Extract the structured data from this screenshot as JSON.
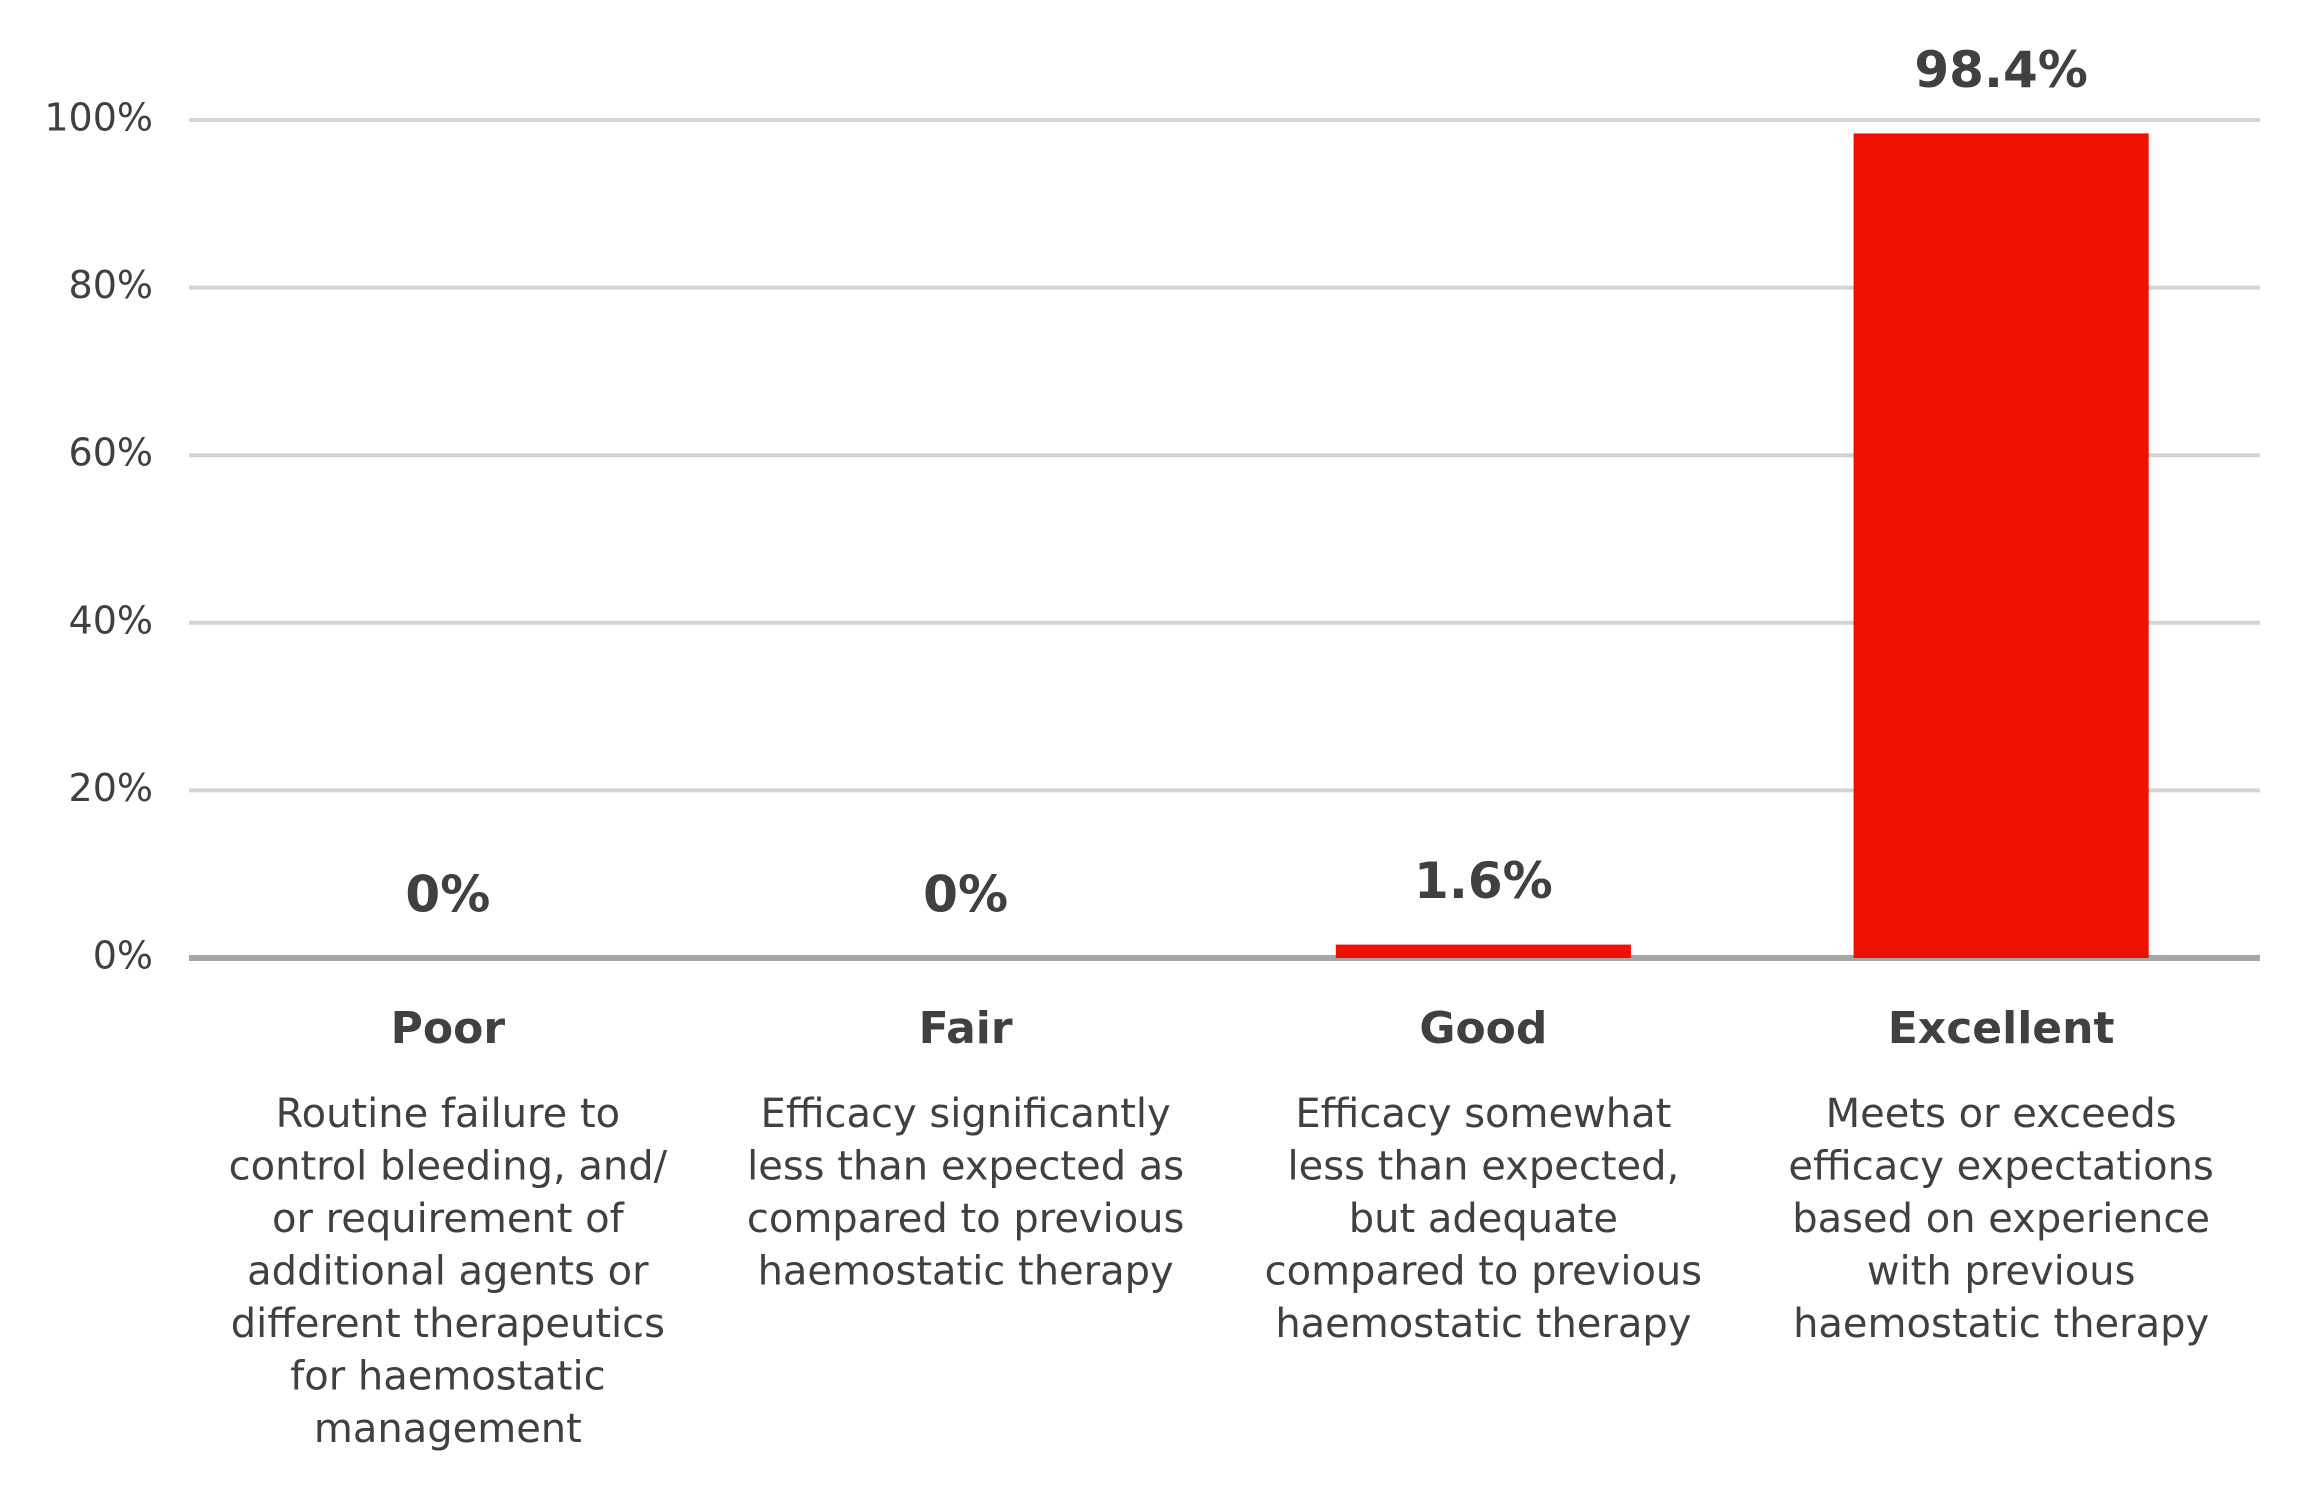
{
  "chart_data": {
    "type": "bar",
    "categories": [
      "Poor",
      "Fair",
      "Good",
      "Excellent"
    ],
    "descriptions": [
      [
        "Routine failure to",
        "control bleeding, and/",
        "or requirement of",
        "additional agents or",
        "different therapeutics",
        "for haemostatic",
        "management"
      ],
      [
        "Efficacy significantly",
        "less than expected as",
        "compared to previous",
        "haemostatic therapy"
      ],
      [
        "Efficacy somewhat",
        "less than expected,",
        "but adequate",
        "compared to previous",
        "haemostatic therapy"
      ],
      [
        "Meets or exceeds",
        "efficacy expectations",
        "based on experience",
        "with previous",
        "haemostatic therapy"
      ]
    ],
    "values": [
      0,
      0,
      1.6,
      98.4
    ],
    "value_labels": [
      "0%",
      "0%",
      "1.6%",
      "98.4%"
    ],
    "color": "#ee1100",
    "ylim": [
      0,
      100
    ],
    "yticks": [
      {
        "value": 0,
        "label": "0%"
      },
      {
        "value": 20,
        "label": "20%"
      },
      {
        "value": 40,
        "label": "40%"
      },
      {
        "value": 60,
        "label": "60%"
      },
      {
        "value": 80,
        "label": "80%"
      },
      {
        "value": 100,
        "label": "100%"
      }
    ],
    "grid": true
  }
}
